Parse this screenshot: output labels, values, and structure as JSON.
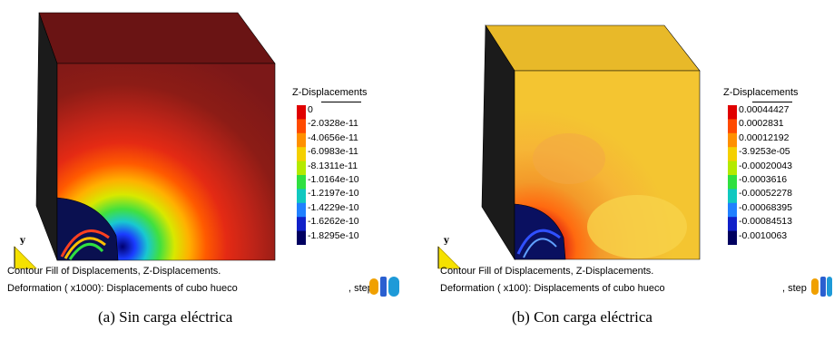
{
  "panels": [
    {
      "legend_title": "Z-Displacements",
      "legend_values": [
        "0",
        "-2.0328e-11",
        "-4.0656e-11",
        "-6.0983e-11",
        "-8.1311e-11",
        "-1.0164e-10",
        "-1.2197e-10",
        "-1.4229e-10",
        "-1.6262e-10",
        "-1.8295e-10"
      ],
      "axis_label": "y",
      "info_line1": "Contour Fill of Displacements, Z-Displacements.",
      "info_line2": "Deformation ( x1000): Displacements of  cubo hueco",
      "step_label": ", step",
      "caption": "(a)  Sin carga eléctrica"
    },
    {
      "legend_title": "Z-Displacements",
      "legend_values": [
        "0.00044427",
        "0.0002831",
        "0.00012192",
        "-3.9253e-05",
        "-0.00020043",
        "-0.0003616",
        "-0.00052278",
        "-0.00068395",
        "-0.00084513",
        "-0.0010063"
      ],
      "axis_label": "y",
      "info_line1": "Contour Fill of Displacements, Z-Displacements.",
      "info_line2": "Deformation ( x100): Displacements of  cubo hueco",
      "step_label": ", step",
      "caption": "(b)  Con carga eléctrica"
    }
  ],
  "colors": {
    "cube_a_face": "#7c1818",
    "cube_a_top": "#6a1414",
    "cube_b_face": "#f4c531",
    "cube_b_top": "#e8b929",
    "cube_side": "#1b1b1b",
    "legend_scale": [
      "#e00000",
      "#ff4a00",
      "#ff9000",
      "#f4d000",
      "#b4ea00",
      "#30e040",
      "#10c8c0",
      "#2080ff",
      "#1020c8",
      "#000060"
    ]
  }
}
